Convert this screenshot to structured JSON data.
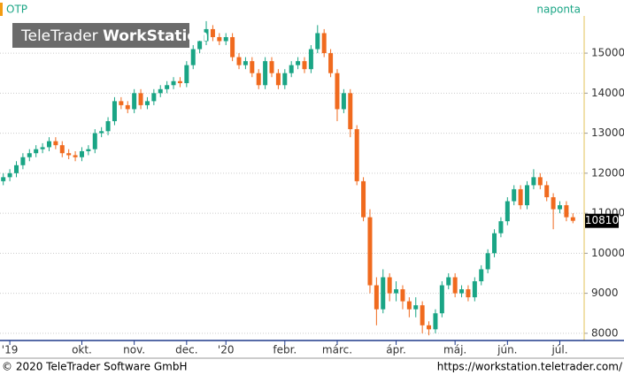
{
  "chart_data": {
    "type": "candlestick",
    "title": "OTP",
    "subtitle": "naponta",
    "watermark": {
      "light": "TeleTrader",
      "bold": "WorkStation"
    },
    "up_color": "#1aa585",
    "down_color": "#f06a1e",
    "grid": true,
    "ylim": [
      7820,
      15930
    ],
    "yticks": [
      8000,
      9000,
      10000,
      11000,
      12000,
      13000,
      14000,
      15000
    ],
    "xlim": [
      -0.5,
      87.5
    ],
    "xticks": [
      {
        "value": 1,
        "label": "'19"
      },
      {
        "value": 12,
        "label": "okt."
      },
      {
        "value": 20,
        "label": "nov."
      },
      {
        "value": 28,
        "label": "dec."
      },
      {
        "value": 34,
        "label": "'20"
      },
      {
        "value": 43,
        "label": "febr."
      },
      {
        "value": 51,
        "label": "márc."
      },
      {
        "value": 60,
        "label": "ápr."
      },
      {
        "value": 69,
        "label": "máj."
      },
      {
        "value": 77,
        "label": "jún."
      },
      {
        "value": 85,
        "label": "júl."
      }
    ],
    "open": [
      11800,
      11900,
      12000,
      12200,
      12400,
      12500,
      12600,
      12650,
      12800,
      12700,
      12500,
      12450,
      12400,
      12550,
      12600,
      13000,
      13050,
      13300,
      13800,
      13700,
      13600,
      14000,
      13700,
      13800,
      14000,
      14100,
      14200,
      14300,
      14250,
      14700,
      15100,
      15300,
      15600,
      15400,
      15300,
      15400,
      14900,
      14700,
      14800,
      14500,
      14200,
      14800,
      14500,
      14200,
      14500,
      14700,
      14800,
      14600,
      15100,
      15500,
      15000,
      14500,
      13600,
      14000,
      13100,
      11800,
      10900,
      9200,
      8600,
      9400,
      9000,
      9100,
      8800,
      8600,
      8700,
      8200,
      8100,
      8500,
      9200,
      9400,
      9000,
      9100,
      8900,
      9300,
      9600,
      10000,
      10500,
      10800,
      11300,
      11600,
      11200,
      11700,
      11900,
      11700,
      11400,
      11100,
      11200,
      10900
    ],
    "high": [
      12000,
      12100,
      12300,
      12500,
      12600,
      12700,
      12750,
      12900,
      12900,
      12800,
      12600,
      12550,
      12650,
      12700,
      13100,
      13150,
      13400,
      13900,
      13900,
      13800,
      14100,
      14100,
      13900,
      14100,
      14200,
      14300,
      14400,
      14400,
      14800,
      15200,
      15400,
      15800,
      15700,
      15500,
      15500,
      15500,
      15000,
      14900,
      14900,
      14600,
      14900,
      14900,
      14600,
      14600,
      14800,
      14900,
      14900,
      15200,
      15700,
      15600,
      15100,
      14600,
      14100,
      14100,
      13200,
      11900,
      11100,
      9400,
      9600,
      9500,
      9300,
      9200,
      8900,
      8900,
      8800,
      8300,
      8600,
      9300,
      9500,
      9500,
      9200,
      9200,
      9400,
      9700,
      10100,
      10600,
      10900,
      11400,
      11700,
      11700,
      11800,
      12100,
      12000,
      11800,
      11500,
      11300,
      11300,
      11000
    ],
    "low": [
      11700,
      11800,
      11900,
      12100,
      12300,
      12400,
      12500,
      12550,
      12600,
      12400,
      12350,
      12300,
      12300,
      12450,
      12500,
      12900,
      12950,
      13200,
      13600,
      13500,
      13500,
      13600,
      13600,
      13700,
      13900,
      14000,
      14100,
      14150,
      14150,
      14600,
      15000,
      15200,
      15300,
      15200,
      15200,
      14800,
      14600,
      14600,
      14400,
      14100,
      14100,
      14400,
      14100,
      14100,
      14400,
      14600,
      14500,
      14500,
      15000,
      14900,
      14400,
      13300,
      13500,
      12900,
      11700,
      10800,
      9000,
      8200,
      8500,
      8800,
      8800,
      8600,
      8400,
      8400,
      8000,
      7950,
      8000,
      8400,
      9100,
      8900,
      8900,
      8800,
      8800,
      9200,
      9500,
      9900,
      10400,
      10700,
      11200,
      11100,
      11100,
      11600,
      11600,
      11300,
      10600,
      11000,
      10800,
      10750
    ],
    "close": [
      11900,
      12000,
      12200,
      12400,
      12500,
      12600,
      12650,
      12800,
      12700,
      12500,
      12450,
      12400,
      12550,
      12600,
      13000,
      13050,
      13300,
      13800,
      13700,
      13600,
      14000,
      13700,
      13800,
      14000,
      14100,
      14200,
      14300,
      14250,
      14700,
      15100,
      15300,
      15600,
      15400,
      15300,
      15400,
      14900,
      14700,
      14800,
      14500,
      14200,
      14800,
      14500,
      14200,
      14500,
      14700,
      14800,
      14600,
      15100,
      15500,
      15000,
      14500,
      13600,
      14000,
      13100,
      11800,
      10900,
      9200,
      8600,
      9400,
      9000,
      9100,
      8800,
      8600,
      8700,
      8200,
      8100,
      8500,
      9200,
      9400,
      9000,
      9100,
      8900,
      9300,
      9600,
      10000,
      10500,
      10800,
      11300,
      11600,
      11200,
      11700,
      11900,
      11700,
      11400,
      11100,
      11200,
      10900,
      10810
    ]
  },
  "footer": {
    "copyright": "© 2020 TeleTrader Software GmbH",
    "url": "https://workstation.teletrader.com/"
  }
}
